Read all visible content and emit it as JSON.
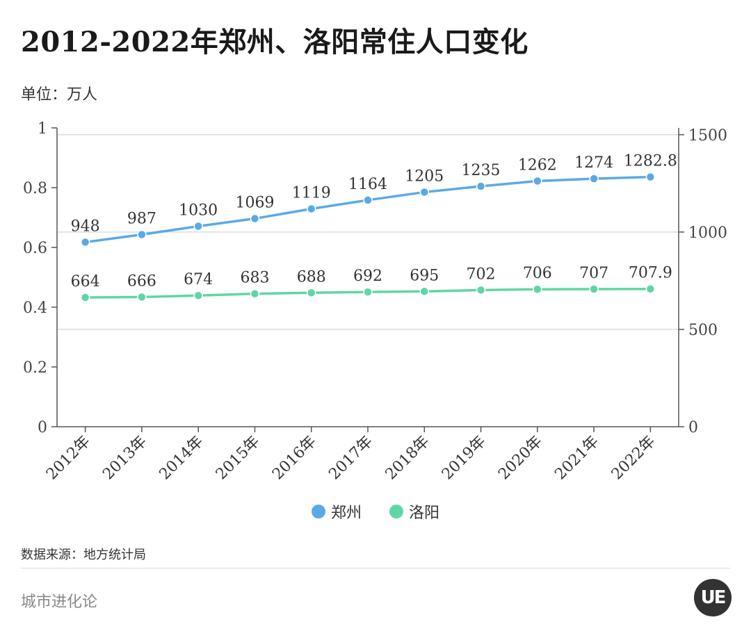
{
  "header": {
    "title": "2012-2022年郑州、洛阳常住人口变化",
    "unit_label": "单位：万人"
  },
  "footer": {
    "source": "数据来源：地方统计局",
    "brand": "城市进化论",
    "logo_text": "UE"
  },
  "chart_data": {
    "type": "line",
    "title": "2012-2022年郑州、洛阳常住人口变化",
    "categories": [
      "2012年",
      "2013年",
      "2014年",
      "2015年",
      "2016年",
      "2017年",
      "2018年",
      "2019年",
      "2020年",
      "2021年",
      "2022年"
    ],
    "series": [
      {
        "name": "郑州",
        "color": "#5aa9e6",
        "values": [
          948,
          987,
          1030,
          1069,
          1119,
          1164,
          1205,
          1235,
          1262,
          1274,
          1282.8
        ],
        "labels": [
          "948",
          "987",
          "1030",
          "1069",
          "1119",
          "1164",
          "1205",
          "1235",
          "1262",
          "1274",
          "1282.8"
        ]
      },
      {
        "name": "洛阳",
        "color": "#5fd6a4",
        "values": [
          664,
          666,
          674,
          683,
          688,
          692,
          695,
          702,
          706,
          707,
          707.9
        ],
        "labels": [
          "664",
          "666",
          "674",
          "683",
          "688",
          "692",
          "695",
          "702",
          "706",
          "707",
          "707.9"
        ]
      }
    ],
    "left_axis": {
      "ticks": [
        0,
        0.2,
        0.4,
        0.6,
        0.8,
        1
      ],
      "tick_labels": [
        "0",
        "0.2",
        "0.4",
        "0.6",
        "0.8",
        "1"
      ],
      "ylim": [
        0,
        1
      ]
    },
    "right_axis": {
      "ticks": [
        0,
        500,
        1000,
        1500
      ],
      "tick_labels": [
        "0",
        "500",
        "1000",
        "1500"
      ],
      "ylim": [
        0,
        1535
      ]
    },
    "grid": true,
    "legend": "bottom-center"
  }
}
